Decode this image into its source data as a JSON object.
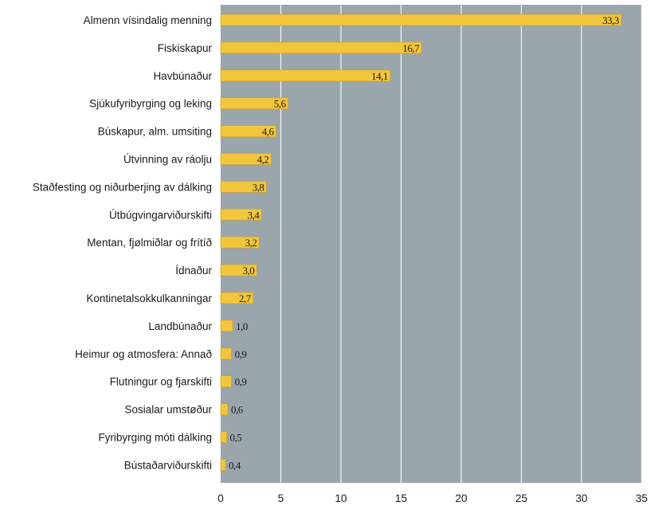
{
  "chart_data": {
    "type": "bar",
    "orientation": "horizontal",
    "categories": [
      "Almenn vísindalig menning",
      "Fiskiskapur",
      "Havbúnaður",
      "Sjúkufyribyrging og leking",
      "Búskapur, alm. umsiting",
      "Útvinning av ráolju",
      "Staðfesting og niðurberjing av dálking",
      "Útbúgvingarviðurskifti",
      "Mentan, fjølmiðlar og frítíð",
      "Ídnaður",
      "Kontinetalsokkulkanningar",
      "Landbúnaður",
      "Heimur og atmosfera: Annað",
      "Flutningur og fjarskifti",
      "Sosialar umstøður",
      "Fyribyrging móti dálking",
      "Bústaðarviðurskifti"
    ],
    "values": [
      33.3,
      16.7,
      14.1,
      5.6,
      4.6,
      4.2,
      3.8,
      3.4,
      3.2,
      3.0,
      2.7,
      1.0,
      0.9,
      0.9,
      0.6,
      0.5,
      0.4
    ],
    "value_labels": [
      "33,3",
      "16,7",
      "14,1",
      "5,6",
      "4,6",
      "4,2",
      "3,8",
      "3,4",
      "3,2",
      "3,0",
      "2,7",
      "1,0",
      "0,9",
      "0,9",
      "0,6",
      "0,5",
      "0,4"
    ],
    "xlim": [
      0,
      35
    ],
    "x_ticks": [
      "0",
      "5",
      "10",
      "15",
      "20",
      "25",
      "30",
      "35"
    ],
    "grid": true,
    "colors": {
      "bar": "#f2c63c",
      "bar_edge": "#c9a020",
      "plot_background": "#9aa6ab",
      "grid": "#f4f6f6"
    }
  }
}
